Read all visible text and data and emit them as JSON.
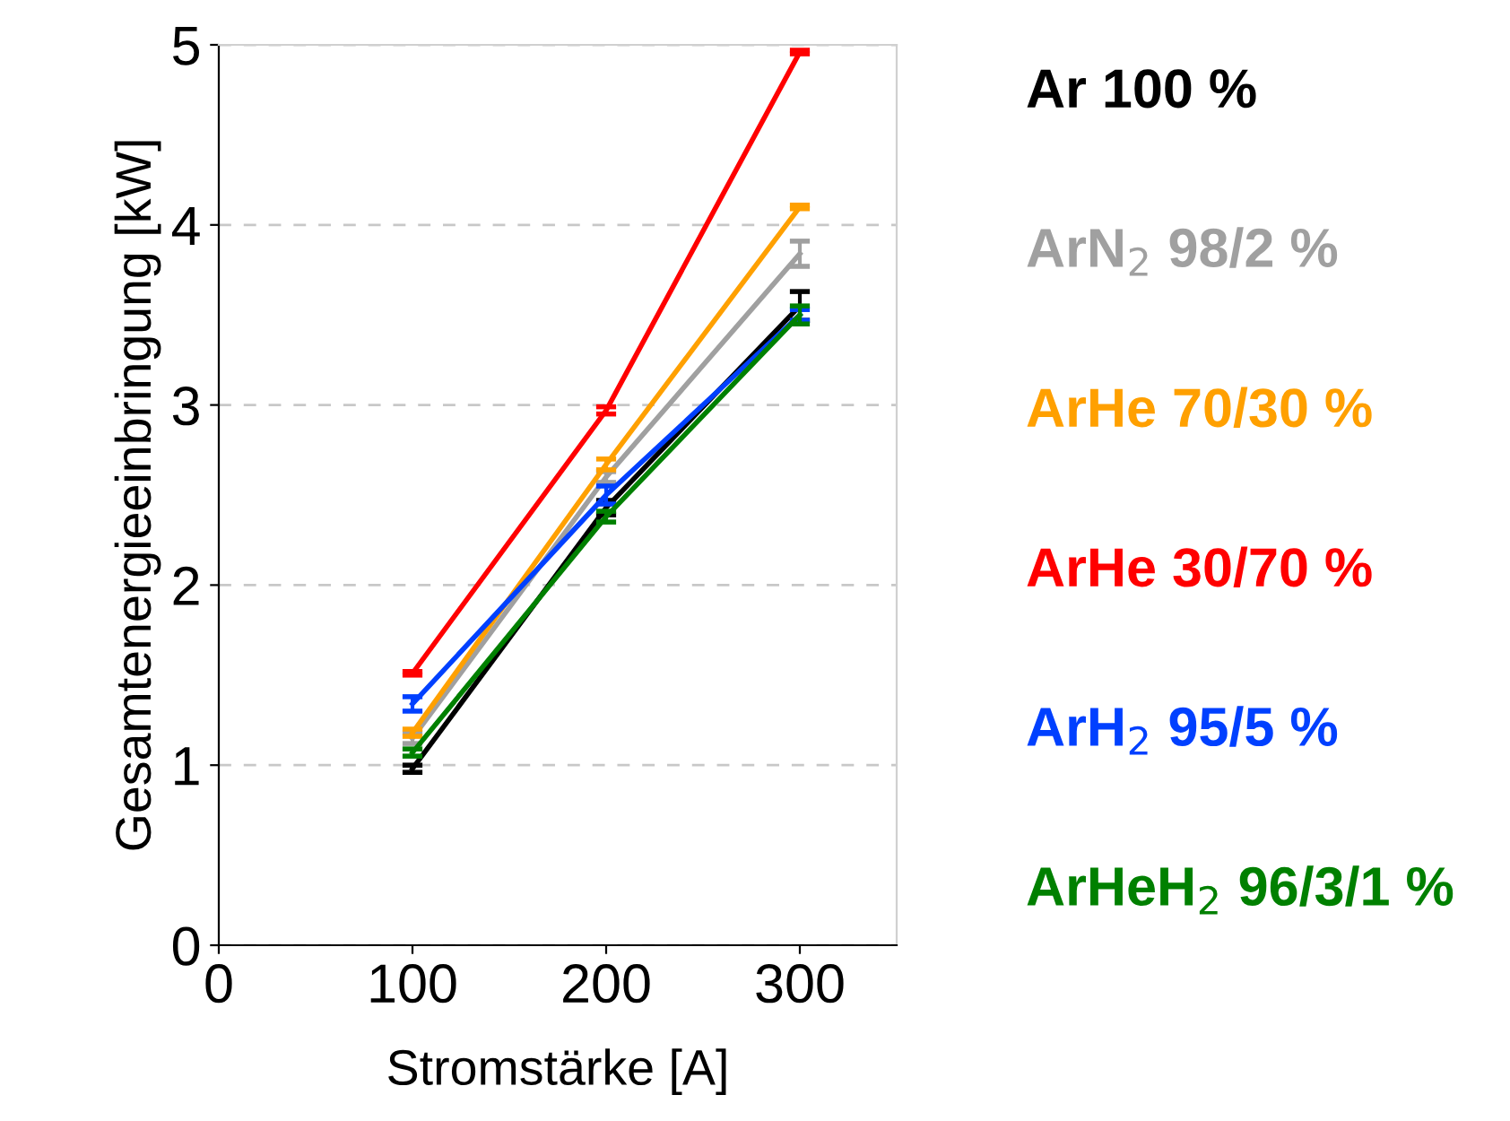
{
  "chart_data": {
    "type": "line",
    "xlabel": "Stromstärke [A]",
    "ylabel": "Gesamtenergieeinbringung [kW]",
    "x": [
      100,
      200,
      300
    ],
    "xlim": [
      0,
      350
    ],
    "xticks": [
      0,
      100,
      200,
      300
    ],
    "ylim": [
      0,
      5
    ],
    "yticks": [
      0,
      1,
      2,
      3,
      4,
      5
    ],
    "grid": "y",
    "legend": "right",
    "marker": "none",
    "series": [
      {
        "name": "Ar 100 %",
        "color": "#000000",
        "values": [
          0.98,
          2.43,
          3.55
        ],
        "errors": [
          0.02,
          0.04,
          0.08
        ]
      },
      {
        "name": "ArN$_{2}$ 98/2 %",
        "color": "#a0a0a0",
        "values": [
          1.15,
          2.6,
          3.84
        ],
        "errors": [
          0.03,
          0.03,
          0.07
        ]
      },
      {
        "name": "ArHe 70/30 %",
        "color": "#ffa000",
        "values": [
          1.18,
          2.67,
          4.1
        ],
        "errors": [
          0.02,
          0.03,
          0.01
        ]
      },
      {
        "name": "ArHe 30/70 %",
        "color": "#ff0000",
        "values": [
          1.51,
          2.97,
          4.96
        ],
        "errors": [
          0.01,
          0.02,
          0.01
        ]
      },
      {
        "name": "ArH$_{2}$ 95/5 %",
        "color": "#0040ff",
        "values": [
          1.34,
          2.5,
          3.5
        ],
        "errors": [
          0.04,
          0.05,
          0.03
        ]
      },
      {
        "name": "ArHeH$_{2}$ 96/3/1 %",
        "color": "#008000",
        "values": [
          1.07,
          2.38,
          3.5
        ],
        "errors": [
          0.02,
          0.03,
          0.05
        ]
      }
    ]
  }
}
